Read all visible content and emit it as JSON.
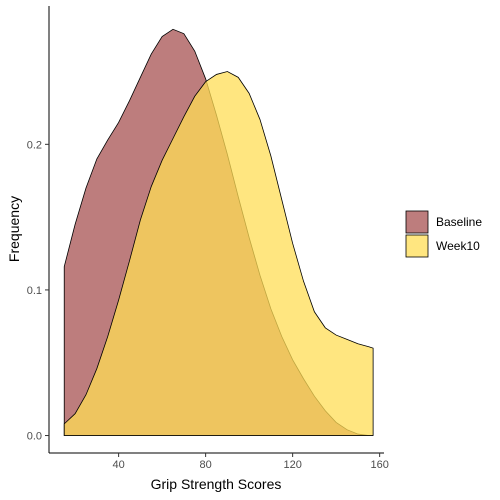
{
  "chart_data": {
    "type": "area",
    "xlabel": "Grip Strength Scores",
    "ylabel": "Frequency",
    "xlim": [
      8,
      162
    ],
    "ylim": [
      -0.012,
      0.295
    ],
    "x_ticks": [
      40,
      80,
      120,
      160
    ],
    "y_ticks": [
      0.0,
      0.1,
      0.2
    ],
    "y_tick_labels": [
      "0.0",
      "0.1",
      "0.2"
    ],
    "grid": false,
    "legend_position": "right",
    "series": [
      {
        "name": "Baseline",
        "color": "#b26666",
        "fill_opacity": 0.85,
        "points": [
          [
            15,
            0.116
          ],
          [
            20,
            0.145
          ],
          [
            25,
            0.17
          ],
          [
            30,
            0.19
          ],
          [
            35,
            0.203
          ],
          [
            40,
            0.215
          ],
          [
            45,
            0.23
          ],
          [
            50,
            0.246
          ],
          [
            55,
            0.262
          ],
          [
            60,
            0.274
          ],
          [
            65,
            0.279
          ],
          [
            70,
            0.276
          ],
          [
            75,
            0.264
          ],
          [
            80,
            0.245
          ],
          [
            85,
            0.22
          ],
          [
            90,
            0.193
          ],
          [
            95,
            0.164
          ],
          [
            100,
            0.136
          ],
          [
            105,
            0.11
          ],
          [
            110,
            0.087
          ],
          [
            115,
            0.068
          ],
          [
            120,
            0.052
          ],
          [
            125,
            0.039
          ],
          [
            130,
            0.027
          ],
          [
            135,
            0.017
          ],
          [
            140,
            0.009
          ],
          [
            145,
            0.004
          ],
          [
            150,
            0.001
          ],
          [
            155,
            0.0
          ],
          [
            157,
            0.0
          ]
        ]
      },
      {
        "name": "Week10",
        "color": "#ffdd55",
        "fill_opacity": 0.75,
        "points": [
          [
            15,
            0.008
          ],
          [
            20,
            0.015
          ],
          [
            25,
            0.028
          ],
          [
            30,
            0.046
          ],
          [
            35,
            0.068
          ],
          [
            40,
            0.093
          ],
          [
            45,
            0.12
          ],
          [
            50,
            0.148
          ],
          [
            55,
            0.171
          ],
          [
            60,
            0.189
          ],
          [
            65,
            0.204
          ],
          [
            70,
            0.219
          ],
          [
            75,
            0.233
          ],
          [
            80,
            0.243
          ],
          [
            85,
            0.248
          ],
          [
            90,
            0.25
          ],
          [
            95,
            0.246
          ],
          [
            100,
            0.235
          ],
          [
            105,
            0.217
          ],
          [
            110,
            0.192
          ],
          [
            115,
            0.162
          ],
          [
            120,
            0.132
          ],
          [
            125,
            0.106
          ],
          [
            130,
            0.085
          ],
          [
            135,
            0.074
          ],
          [
            140,
            0.069
          ],
          [
            145,
            0.066
          ],
          [
            150,
            0.063
          ],
          [
            155,
            0.061
          ],
          [
            157,
            0.06
          ]
        ]
      }
    ]
  }
}
